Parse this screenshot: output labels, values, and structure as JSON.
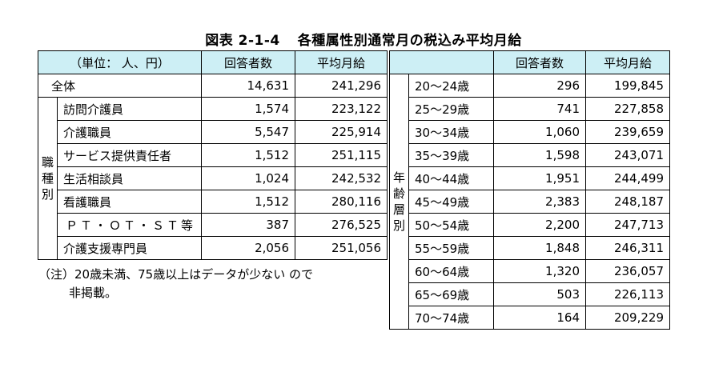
{
  "title": {
    "fig": "図表 2-1-4",
    "text": "各種属性別通常月の税込み平均月給"
  },
  "left": {
    "header": {
      "unit": "（単位：  人、円）",
      "count": "回答者数",
      "avg": "平均月給"
    },
    "total": {
      "label": "全体",
      "count": "14,631",
      "avg": "241,296"
    },
    "group_label": [
      "職",
      "種",
      "別"
    ],
    "rows": [
      {
        "label": "訪問介護員",
        "count": "1,574",
        "avg": "223,122"
      },
      {
        "label": "介護職員",
        "count": "5,547",
        "avg": "225,914"
      },
      {
        "label": "サービス提供責任者",
        "count": "1,512",
        "avg": "251,115"
      },
      {
        "label": "生活相談員",
        "count": "1,024",
        "avg": "242,532"
      },
      {
        "label": "看護職員",
        "count": "1,512",
        "avg": "280,116"
      },
      {
        "label": "ＰＴ・ＯＴ・ＳＴ等",
        "count": "387",
        "avg": "276,525"
      },
      {
        "label": "介護支援専門員",
        "count": "2,056",
        "avg": "251,056"
      }
    ]
  },
  "right": {
    "header": {
      "count": "回答者数",
      "avg": "平均月給"
    },
    "group_label": [
      "年",
      "齢",
      "層",
      "別"
    ],
    "rows": [
      {
        "label": "20～24歳",
        "count": "296",
        "avg": "199,845"
      },
      {
        "label": "25～29歳",
        "count": "741",
        "avg": "227,858"
      },
      {
        "label": "30～34歳",
        "count": "1,060",
        "avg": "239,659"
      },
      {
        "label": "35～39歳",
        "count": "1,598",
        "avg": "243,071"
      },
      {
        "label": "40～44歳",
        "count": "1,951",
        "avg": "244,499"
      },
      {
        "label": "45～49歳",
        "count": "2,383",
        "avg": "248,187"
      },
      {
        "label": "50～54歳",
        "count": "2,200",
        "avg": "247,713"
      },
      {
        "label": "55～59歳",
        "count": "1,848",
        "avg": "246,311"
      },
      {
        "label": "60～64歳",
        "count": "1,320",
        "avg": "236,057"
      },
      {
        "label": "65～69歳",
        "count": "503",
        "avg": "226,113"
      },
      {
        "label": "70～74歳",
        "count": "164",
        "avg": "209,229"
      }
    ]
  },
  "note": {
    "prefix": "（注）",
    "line1": "20歳未満、75歳以上はデータが少ない ので",
    "line2": "非掲載。"
  },
  "colors": {
    "header_bg": "#cdeff5"
  }
}
